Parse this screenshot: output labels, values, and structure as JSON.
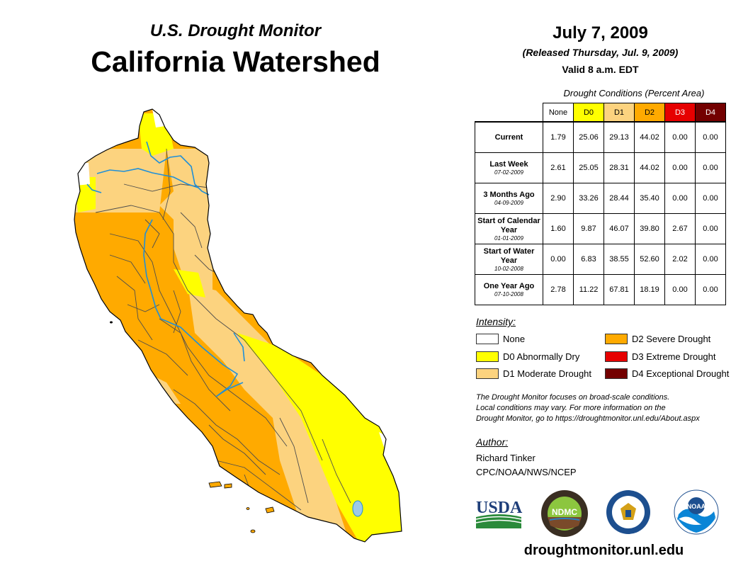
{
  "header": {
    "supertitle": "U.S. Drought Monitor",
    "title": "California Watershed"
  },
  "release": {
    "date": "July 7, 2009",
    "released": "(Released Thursday, Jul. 9, 2009)",
    "valid": "Valid 8 a.m. EDT"
  },
  "table": {
    "title": "Drought Conditions (Percent Area)",
    "columns": [
      "None",
      "D0",
      "D1",
      "D2",
      "D3",
      "D4"
    ],
    "column_colors": [
      "#ffffff",
      "#ffff00",
      "#fcd37f",
      "#ffaa00",
      "#e60000",
      "#730000"
    ],
    "column_text_colors": [
      "#000000",
      "#000000",
      "#000000",
      "#000000",
      "#ffffff",
      "#ffffff"
    ],
    "rows": [
      {
        "label": "Current",
        "date": "",
        "values": [
          "1.79",
          "25.06",
          "29.13",
          "44.02",
          "0.00",
          "0.00"
        ]
      },
      {
        "label": "Last Week",
        "date": "07-02-2009",
        "values": [
          "2.61",
          "25.05",
          "28.31",
          "44.02",
          "0.00",
          "0.00"
        ]
      },
      {
        "label": "3 Months Ago",
        "date": "04-09-2009",
        "values": [
          "2.90",
          "33.26",
          "28.44",
          "35.40",
          "0.00",
          "0.00"
        ]
      },
      {
        "label": "Start of Calendar Year",
        "date": "01-01-2009",
        "values": [
          "1.60",
          "9.87",
          "46.07",
          "39.80",
          "2.67",
          "0.00"
        ]
      },
      {
        "label": "Start of Water Year",
        "date": "10-02-2008",
        "values": [
          "0.00",
          "6.83",
          "38.55",
          "52.60",
          "2.02",
          "0.00"
        ]
      },
      {
        "label": "One Year Ago",
        "date": "07-10-2008",
        "values": [
          "2.78",
          "11.22",
          "67.81",
          "18.19",
          "0.00",
          "0.00"
        ]
      }
    ]
  },
  "legend": {
    "title": "Intensity:",
    "items": [
      {
        "label": "None",
        "color": "#ffffff"
      },
      {
        "label": "D0 Abnormally Dry",
        "color": "#ffff00"
      },
      {
        "label": "D1 Moderate Drought",
        "color": "#fcd37f"
      },
      {
        "label": "D2 Severe Drought",
        "color": "#ffaa00"
      },
      {
        "label": "D3 Extreme Drought",
        "color": "#e60000"
      },
      {
        "label": "D4 Exceptional Drought",
        "color": "#730000"
      }
    ]
  },
  "note": {
    "line1": "The Drought Monitor focuses on broad-scale conditions.",
    "line2": "Local conditions may vary. For more information on the",
    "line3": "Drought Monitor, go to https://droughtmonitor.unl.edu/About.aspx"
  },
  "author": {
    "title": "Author:",
    "name": "Richard Tinker",
    "org": "CPC/NOAA/NWS/NCEP"
  },
  "logos": {
    "usda": "USDA",
    "ndmc": "NDMC",
    "noaa": "NOAA"
  },
  "footer": {
    "site": "droughtmonitor.unl.edu"
  }
}
